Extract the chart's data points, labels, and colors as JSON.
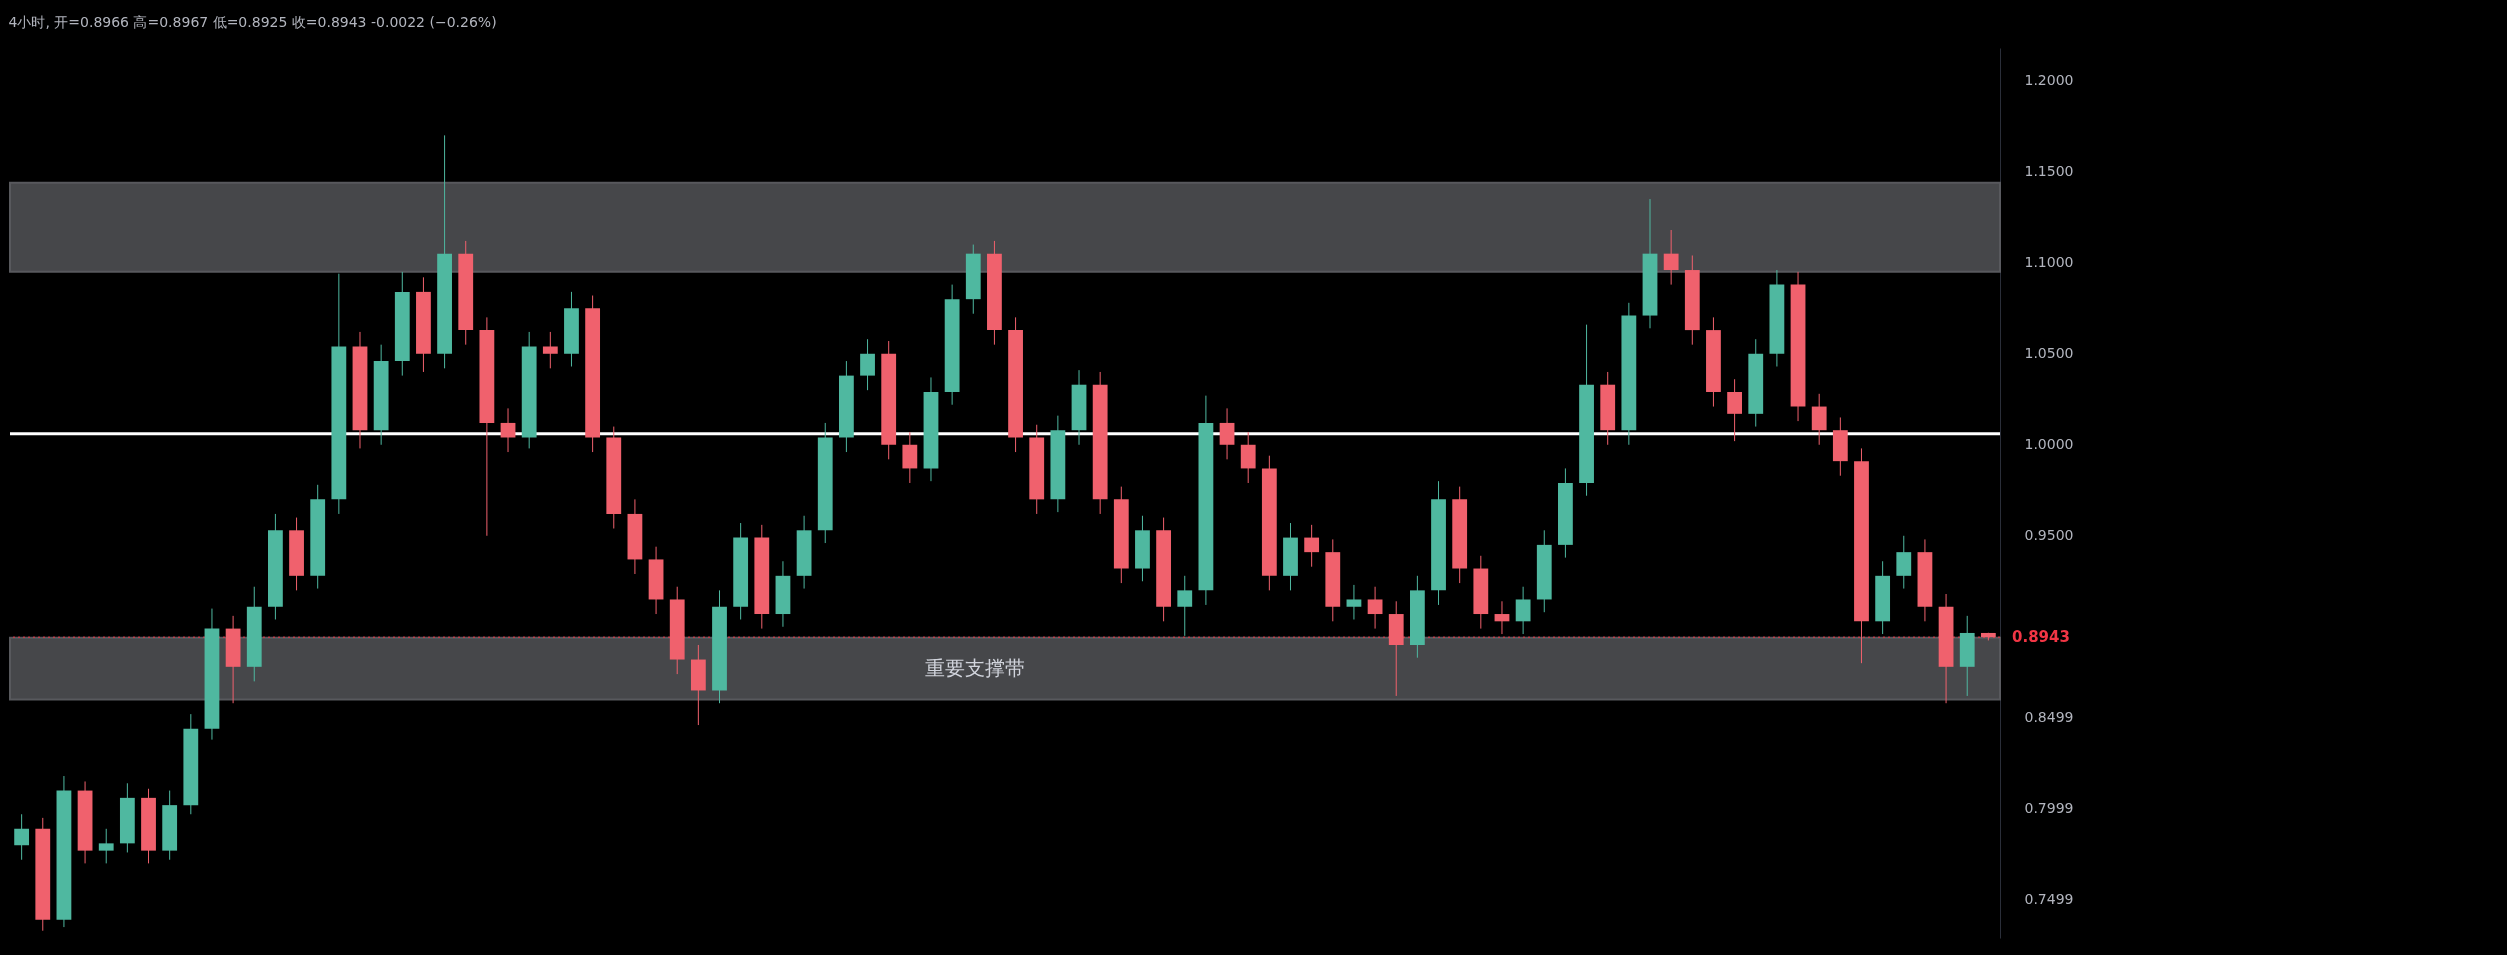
{
  "chart_data": {
    "type": "candlestick",
    "title": "4小时, 开=0.8966 高=0.8967 低=0.8925 收=0.8943 -0.0022 (−0.26%)",
    "categories": [
      null,
      null,
      null,
      null,
      null,
      null,
      null,
      null,
      null,
      null,
      null,
      null,
      null,
      null,
      null,
      null,
      null,
      null,
      null,
      null,
      null,
      null,
      null,
      null,
      null,
      null,
      null,
      null,
      null,
      null,
      null,
      null,
      null,
      null,
      null,
      null,
      null,
      null,
      null,
      null,
      null,
      null,
      null,
      null,
      null,
      null,
      null,
      null,
      null,
      null,
      null,
      null,
      null,
      null,
      null,
      null,
      null,
      null,
      null,
      null,
      null,
      null,
      null,
      null,
      null,
      null,
      null,
      null,
      null,
      null,
      null,
      null,
      null,
      null,
      null,
      null,
      null,
      null,
      null,
      null,
      null,
      null,
      null,
      null,
      null,
      null,
      null,
      null,
      null,
      null,
      null,
      null,
      null,
      null
    ],
    "ohlc": [
      [
        0.78,
        0.797,
        0.772,
        0.789
      ],
      [
        0.789,
        0.795,
        0.733,
        0.739
      ],
      [
        0.739,
        0.818,
        0.735,
        0.81
      ],
      [
        0.81,
        0.815,
        0.77,
        0.777
      ],
      [
        0.777,
        0.789,
        0.77,
        0.781
      ],
      [
        0.781,
        0.814,
        0.776,
        0.806
      ],
      [
        0.806,
        0.811,
        0.77,
        0.777
      ],
      [
        0.777,
        0.81,
        0.772,
        0.802
      ],
      [
        0.802,
        0.852,
        0.797,
        0.844
      ],
      [
        0.844,
        0.91,
        0.838,
        0.899
      ],
      [
        0.899,
        0.906,
        0.858,
        0.878
      ],
      [
        0.878,
        0.922,
        0.87,
        0.911
      ],
      [
        0.911,
        0.962,
        0.904,
        0.953
      ],
      [
        0.953,
        0.96,
        0.92,
        0.928
      ],
      [
        0.928,
        0.978,
        0.921,
        0.97
      ],
      [
        0.97,
        1.094,
        0.962,
        1.054
      ],
      [
        1.054,
        1.062,
        0.998,
        1.008
      ],
      [
        1.008,
        1.055,
        1.0,
        1.046
      ],
      [
        1.046,
        1.095,
        1.038,
        1.084
      ],
      [
        1.084,
        1.092,
        1.04,
        1.05
      ],
      [
        1.05,
        1.17,
        1.042,
        1.105
      ],
      [
        1.105,
        1.112,
        1.055,
        1.063
      ],
      [
        1.063,
        1.07,
        0.95,
        1.012
      ],
      [
        1.012,
        1.02,
        0.996,
        1.004
      ],
      [
        1.004,
        1.062,
        0.998,
        1.054
      ],
      [
        1.054,
        1.062,
        1.042,
        1.05
      ],
      [
        1.05,
        1.084,
        1.043,
        1.075
      ],
      [
        1.075,
        1.082,
        0.996,
        1.004
      ],
      [
        1.004,
        1.01,
        0.954,
        0.962
      ],
      [
        0.962,
        0.97,
        0.929,
        0.937
      ],
      [
        0.937,
        0.944,
        0.907,
        0.915
      ],
      [
        0.915,
        0.922,
        0.874,
        0.882
      ],
      [
        0.882,
        0.89,
        0.846,
        0.865
      ],
      [
        0.865,
        0.92,
        0.858,
        0.911
      ],
      [
        0.911,
        0.957,
        0.904,
        0.949
      ],
      [
        0.949,
        0.956,
        0.899,
        0.907
      ],
      [
        0.907,
        0.936,
        0.9,
        0.928
      ],
      [
        0.928,
        0.961,
        0.921,
        0.953
      ],
      [
        0.953,
        1.012,
        0.946,
        1.004
      ],
      [
        1.004,
        1.046,
        0.996,
        1.038
      ],
      [
        1.038,
        1.058,
        1.03,
        1.05
      ],
      [
        1.05,
        1.057,
        0.992,
        1.0
      ],
      [
        1.0,
        1.007,
        0.979,
        0.987
      ],
      [
        0.987,
        1.037,
        0.98,
        1.029
      ],
      [
        1.029,
        1.088,
        1.022,
        1.08
      ],
      [
        1.08,
        1.11,
        1.072,
        1.105
      ],
      [
        1.105,
        1.112,
        1.055,
        1.063
      ],
      [
        1.063,
        1.07,
        0.996,
        1.004
      ],
      [
        1.004,
        1.011,
        0.962,
        0.97
      ],
      [
        0.97,
        1.016,
        0.963,
        1.008
      ],
      [
        1.008,
        1.041,
        1.0,
        1.033
      ],
      [
        1.033,
        1.04,
        0.962,
        0.97
      ],
      [
        0.97,
        0.977,
        0.924,
        0.932
      ],
      [
        0.932,
        0.961,
        0.925,
        0.953
      ],
      [
        0.953,
        0.96,
        0.903,
        0.911
      ],
      [
        0.911,
        0.928,
        0.895,
        0.92
      ],
      [
        0.92,
        1.027,
        0.912,
        1.012
      ],
      [
        1.012,
        1.02,
        0.992,
        1.0
      ],
      [
        1.0,
        1.007,
        0.979,
        0.987
      ],
      [
        0.987,
        0.994,
        0.92,
        0.928
      ],
      [
        0.928,
        0.957,
        0.92,
        0.949
      ],
      [
        0.949,
        0.956,
        0.933,
        0.941
      ],
      [
        0.941,
        0.948,
        0.903,
        0.911
      ],
      [
        0.911,
        0.923,
        0.904,
        0.915
      ],
      [
        0.915,
        0.922,
        0.899,
        0.907
      ],
      [
        0.907,
        0.914,
        0.862,
        0.89
      ],
      [
        0.89,
        0.928,
        0.883,
        0.92
      ],
      [
        0.92,
        0.98,
        0.912,
        0.97
      ],
      [
        0.97,
        0.977,
        0.924,
        0.932
      ],
      [
        0.932,
        0.939,
        0.899,
        0.907
      ],
      [
        0.907,
        0.914,
        0.896,
        0.903
      ],
      [
        0.903,
        0.922,
        0.896,
        0.915
      ],
      [
        0.915,
        0.953,
        0.908,
        0.945
      ],
      [
        0.945,
        0.987,
        0.938,
        0.979
      ],
      [
        0.979,
        1.066,
        0.972,
        1.033
      ],
      [
        1.033,
        1.04,
        1.0,
        1.008
      ],
      [
        1.008,
        1.078,
        1.0,
        1.071
      ],
      [
        1.071,
        1.135,
        1.064,
        1.105
      ],
      [
        1.105,
        1.118,
        1.088,
        1.096
      ],
      [
        1.096,
        1.104,
        1.055,
        1.063
      ],
      [
        1.063,
        1.07,
        1.021,
        1.029
      ],
      [
        1.029,
        1.036,
        1.002,
        1.017
      ],
      [
        1.017,
        1.058,
        1.01,
        1.05
      ],
      [
        1.05,
        1.096,
        1.043,
        1.088
      ],
      [
        1.088,
        1.095,
        1.013,
        1.021
      ],
      [
        1.021,
        1.028,
        1.0,
        1.008
      ],
      [
        1.008,
        1.015,
        0.983,
        0.991
      ],
      [
        0.991,
        0.998,
        0.88,
        0.903
      ],
      [
        0.903,
        0.936,
        0.896,
        0.928
      ],
      [
        0.928,
        0.95,
        0.921,
        0.941
      ],
      [
        0.941,
        0.948,
        0.903,
        0.911
      ],
      [
        0.911,
        0.918,
        0.858,
        0.878
      ],
      [
        0.878,
        0.906,
        0.862,
        0.8966
      ],
      [
        0.8966,
        0.8967,
        0.8925,
        0.8943
      ]
    ],
    "ylim": [
      0.729,
      1.218
    ],
    "yticks": [
      {
        "value": 1.2,
        "label": "1.2000"
      },
      {
        "value": 1.15,
        "label": "1.1500"
      },
      {
        "value": 1.1,
        "label": "1.1000"
      },
      {
        "value": 1.05,
        "label": "1.0500"
      },
      {
        "value": 1.0,
        "label": "1.0000"
      },
      {
        "value": 0.95,
        "label": "0.9500"
      },
      0.8499,
      0.7999,
      0.7499
    ],
    "tick_labels": "y",
    "grid": false,
    "bands": [
      {
        "axis": "y",
        "from": 1.095,
        "to": 1.144,
        "color": "#4a4b4f"
      },
      {
        "axis": "y",
        "from": 0.86,
        "to": 0.894,
        "label": "重要支撑带",
        "color": "#4a4b4f"
      }
    ],
    "ref_lines": [
      {
        "axis": "y",
        "value": 0.8943,
        "label": "0.8943",
        "color": "#f23645",
        "line_style": "dotted"
      },
      {
        "axis": "y",
        "value": 1.006,
        "color": "#ffffff",
        "line_style": "solid"
      }
    ]
  }
}
